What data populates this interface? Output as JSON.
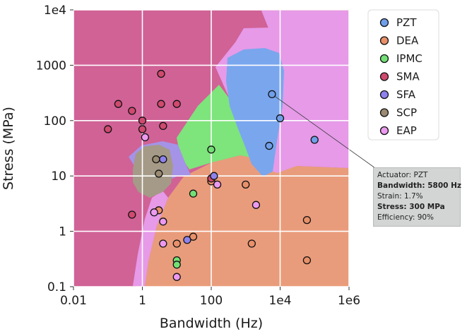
{
  "chart_data": {
    "type": "scatter",
    "xlabel": "Bandwidth (Hz)",
    "ylabel": "Stress (MPa)",
    "xscale": "log",
    "yscale": "log",
    "xlim": [
      0.01,
      1000000
    ],
    "ylim": [
      0.1,
      10000
    ],
    "x_ticks": [
      "0.01",
      "1",
      "100",
      "1e4",
      "1e6"
    ],
    "y_ticks": [
      "0.1",
      "1",
      "10",
      "100",
      "1000",
      "1e4"
    ],
    "grid": true,
    "legend_position": "right",
    "background_regions": "decision regions colored by nearest actuator class",
    "series": [
      {
        "name": "PZT",
        "color": "#6f9fe9",
        "region_color": "#7aa6ee",
        "points": [
          [
            5800,
            300
          ],
          [
            10000,
            110
          ],
          [
            4800,
            35
          ],
          [
            100000,
            45
          ]
        ]
      },
      {
        "name": "DEA",
        "color": "#e8906a",
        "region_color": "#e99c7b",
        "points": [
          [
            100,
            8
          ],
          [
            1000,
            7
          ],
          [
            3,
            2.4
          ],
          [
            30,
            0.8
          ],
          [
            1500,
            0.6
          ],
          [
            60000,
            1.6
          ],
          [
            60000,
            0.3
          ],
          [
            10,
            0.6
          ]
        ]
      },
      {
        "name": "IPMC",
        "color": "#73e076",
        "region_color": "#7ee47c",
        "points": [
          [
            100,
            30
          ],
          [
            30,
            4.8
          ],
          [
            10,
            0.3
          ],
          [
            10,
            0.25
          ]
        ]
      },
      {
        "name": "SMA",
        "color": "#cf4a6e",
        "region_color": "#d06296",
        "points": [
          [
            3.5,
            700
          ],
          [
            0.2,
            200
          ],
          [
            3.5,
            200
          ],
          [
            10,
            200
          ],
          [
            0.5,
            150
          ],
          [
            1,
            100
          ],
          [
            0.1,
            70
          ],
          [
            1,
            70
          ],
          [
            4,
            80
          ],
          [
            0.5,
            2
          ],
          [
            100,
            9
          ]
        ]
      },
      {
        "name": "SFA",
        "color": "#8e82ed",
        "region_color": "#a593e7",
        "points": [
          [
            4,
            20
          ],
          [
            120,
            10
          ],
          [
            20,
            0.7
          ]
        ]
      },
      {
        "name": "SCP",
        "color": "#9a8b72",
        "region_color": "#a49a87",
        "points": [
          [
            2.5,
            20
          ],
          [
            3,
            11
          ]
        ]
      },
      {
        "name": "EAP",
        "color": "#ec9af0",
        "region_color": "#e69ae8",
        "points": [
          [
            1.2,
            50
          ],
          [
            150,
            7
          ],
          [
            2000,
            3
          ],
          [
            4,
            1.5
          ],
          [
            2.2,
            2.2
          ],
          [
            4,
            0.6
          ],
          [
            10,
            0.15
          ]
        ]
      }
    ],
    "annotation": {
      "point": [
        5800,
        300
      ],
      "lines": [
        {
          "text": "Actuator: PZT",
          "bold": false
        },
        {
          "text": "Bandwidth: 5800 Hz",
          "bold": true
        },
        {
          "text": "Strain: 1.7%",
          "bold": false
        },
        {
          "text": "Stress: 300 MPa",
          "bold": true
        },
        {
          "text": "Efficiency: 90%",
          "bold": false
        }
      ]
    }
  }
}
